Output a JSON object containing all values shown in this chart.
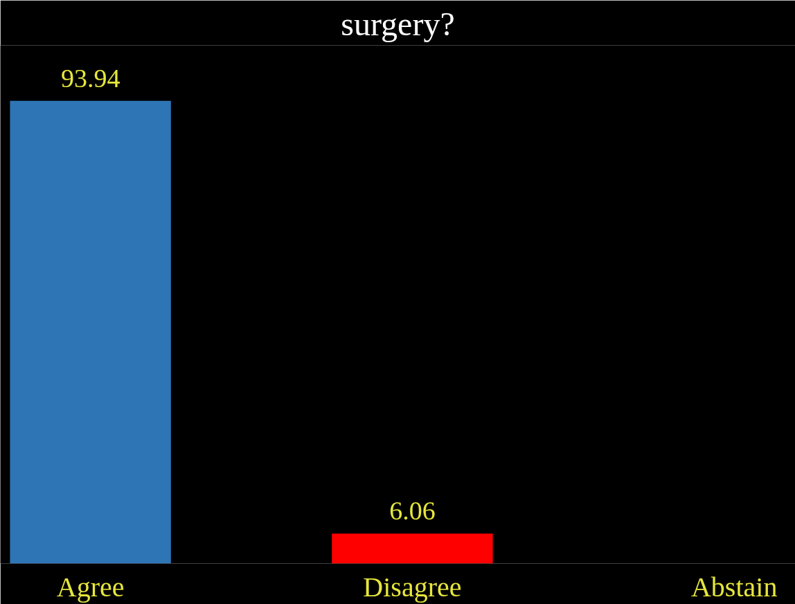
{
  "chart_data": {
    "type": "bar",
    "title": "surgery?",
    "categories": [
      "Agree",
      "Disagree",
      "Abstain"
    ],
    "values": [
      93.94,
      6.06,
      0
    ],
    "colors": [
      "#2e75b6",
      "#ff0000",
      "#ff0000"
    ],
    "value_labels": [
      "93.94",
      "6.06",
      null
    ],
    "tick_labels": "x",
    "grid": false
  }
}
